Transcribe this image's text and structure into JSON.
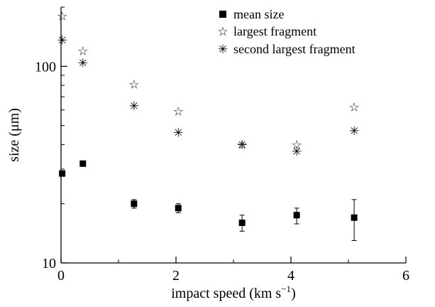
{
  "chart_data": {
    "type": "scatter",
    "xlabel": "impact speed (km s−1)",
    "xlabel_main": "impact speed (km s",
    "xlabel_sup": "−1",
    "xlabel_close": ")",
    "ylabel": "size (μm)",
    "xlim": [
      0,
      6
    ],
    "ylim": [
      10,
      200
    ],
    "yscale": "log",
    "grid": false,
    "legend_position": "top-right",
    "x_ticks": [
      {
        "value": 0,
        "label": "0"
      },
      {
        "value": 2,
        "label": "2"
      },
      {
        "value": 4,
        "label": "4"
      },
      {
        "value": 6,
        "label": "6"
      }
    ],
    "y_ticks": [
      {
        "value": 10,
        "label": "10"
      },
      {
        "value": 100,
        "label": "100"
      }
    ],
    "series": [
      {
        "name": "mean size",
        "marker": "filled-square",
        "x": [
          0.02,
          0.38,
          1.27,
          2.04,
          3.15,
          4.1,
          5.1
        ],
        "y": [
          28.5,
          32,
          20,
          19,
          16,
          17.5,
          17
        ],
        "yerr": [
          null,
          null,
          [
            19,
            21
          ],
          [
            18,
            20
          ],
          [
            14.5,
            17.5
          ],
          [
            15.8,
            19
          ],
          [
            13,
            21
          ]
        ]
      },
      {
        "name": "largest fragment",
        "marker": "open-star",
        "x": [
          0.02,
          0.38,
          1.27,
          2.04,
          3.15,
          4.1,
          5.1
        ],
        "y": [
          180,
          120,
          81,
          59,
          40,
          40,
          62
        ]
      },
      {
        "name": "second largest fragment",
        "marker": "asterisk",
        "x": [
          0.02,
          0.38,
          1.27,
          2.04,
          3.15,
          4.1,
          5.1
        ],
        "y": [
          136,
          104,
          63,
          46,
          40,
          37,
          47
        ]
      }
    ]
  }
}
